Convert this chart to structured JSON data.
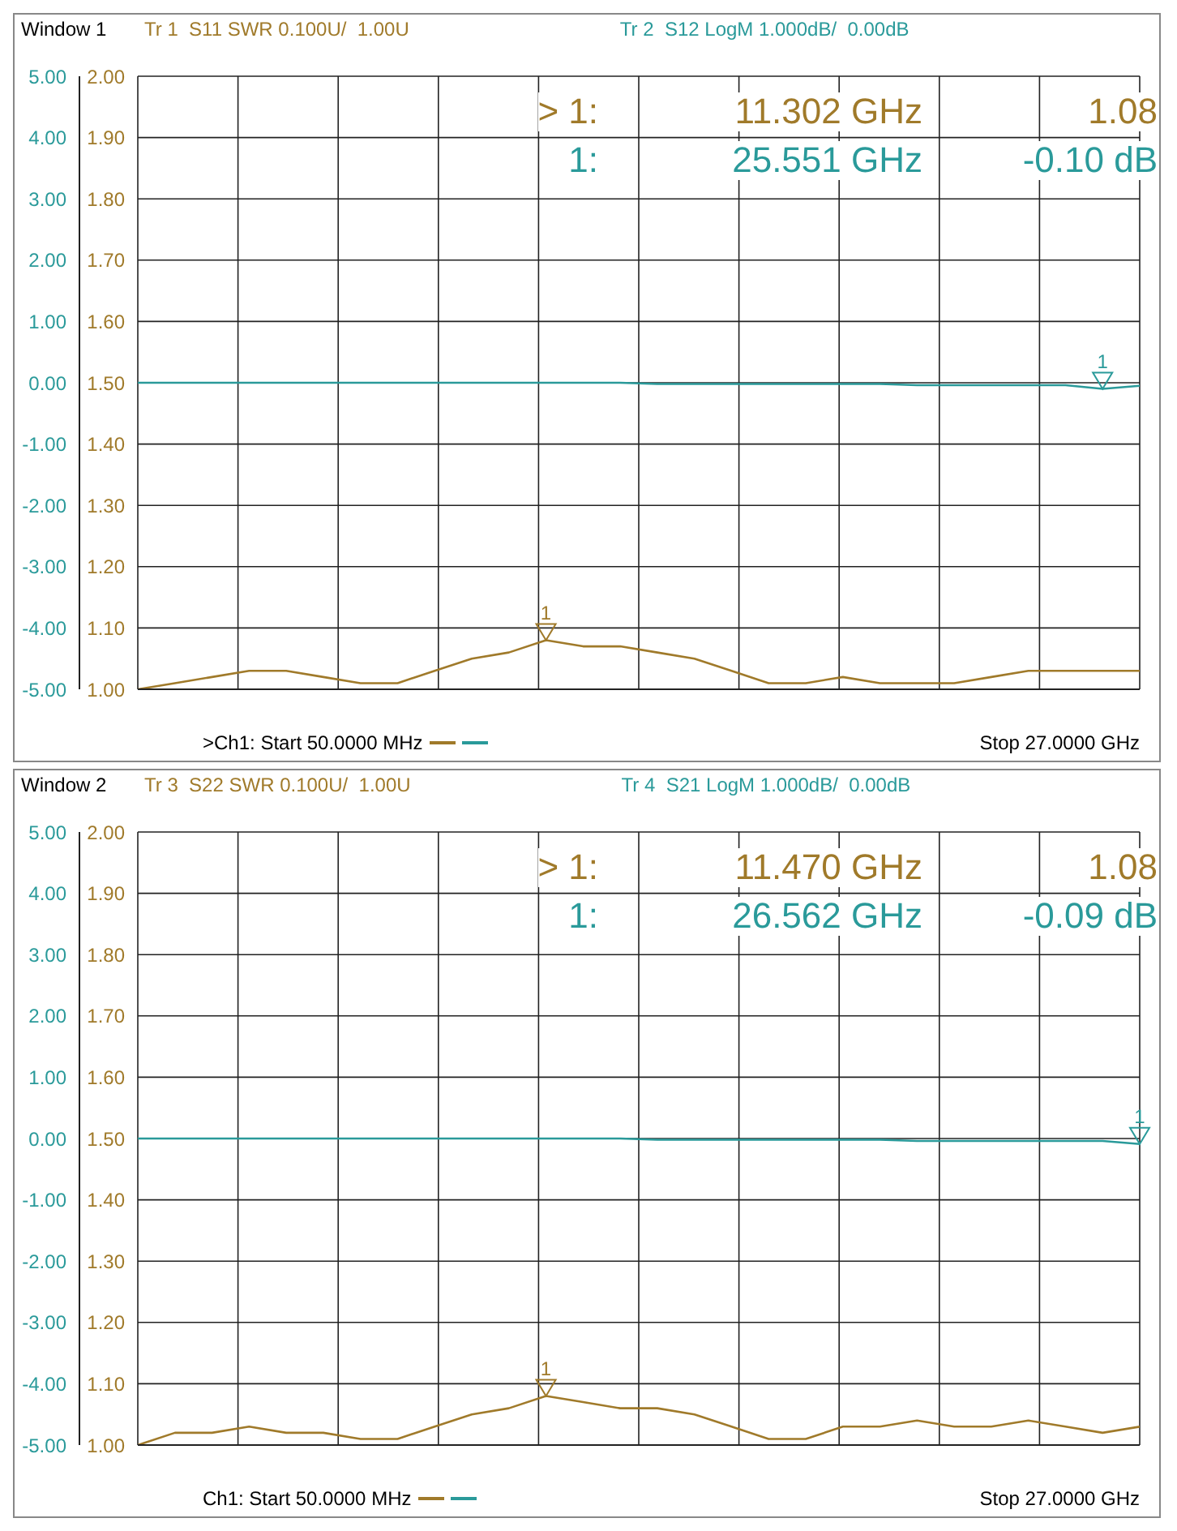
{
  "chart_data": [
    {
      "type": "line",
      "title": "Window 1",
      "grid": true,
      "categories": [
        null,
        null,
        null,
        null,
        null,
        null,
        null,
        null,
        null,
        null,
        null,
        null,
        null,
        null,
        null,
        null,
        null,
        null,
        null,
        null,
        null,
        null,
        null,
        null,
        null,
        null,
        null,
        null
      ],
      "series": [
        {
          "name": "Tr 1  S11 SWR 0.100U/  1.00U",
          "color": "#a07a2a",
          "values": [
            1.0,
            1.01,
            1.02,
            1.03,
            1.03,
            1.02,
            1.01,
            1.01,
            1.03,
            1.05,
            1.06,
            1.08,
            1.07,
            1.07,
            1.06,
            1.05,
            1.03,
            1.01,
            1.01,
            1.02,
            1.01,
            1.01,
            1.01,
            1.02,
            1.03,
            1.03,
            1.03,
            1.03
          ]
        },
        {
          "name": "Tr 2  S12 LogM 1.000dB/  0.00dB",
          "color": "#2a9a9a",
          "axis": "y2",
          "values": [
            0.0,
            0.0,
            0.0,
            0.0,
            0.0,
            0.0,
            0.0,
            0.0,
            0.0,
            0.0,
            0.0,
            0.0,
            0.0,
            0.0,
            -0.02,
            -0.02,
            -0.02,
            -0.02,
            -0.02,
            -0.02,
            -0.02,
            -0.04,
            -0.04,
            -0.04,
            -0.04,
            -0.04,
            -0.1,
            -0.05
          ]
        }
      ],
      "ylim": [
        1,
        2
      ],
      "yticks": [
        {
          "value": 1,
          "label": "1.00"
        },
        {
          "value": 1.1,
          "label": "1.10"
        },
        {
          "value": 1.2,
          "label": "1.20"
        },
        {
          "value": 1.3,
          "label": "1.30"
        },
        {
          "value": 1.4,
          "label": "1.40"
        },
        {
          "value": 1.5,
          "label": "1.50"
        },
        {
          "value": 1.6,
          "label": "1.60"
        },
        {
          "value": 1.7,
          "label": "1.70"
        },
        {
          "value": 1.8,
          "label": "1.80"
        },
        {
          "value": 1.9,
          "label": "1.90"
        },
        {
          "value": 2,
          "label": "2.00"
        }
      ],
      "y2lim": [
        -5,
        5
      ],
      "y2ticks": [
        {
          "value": -5,
          "label": "-5.00"
        },
        {
          "value": -4,
          "label": "-4.00"
        },
        {
          "value": -3,
          "label": "-3.00"
        },
        {
          "value": -2,
          "label": "-2.00"
        },
        {
          "value": -1,
          "label": "-1.00"
        },
        {
          "value": 0,
          "label": "0.00"
        },
        {
          "value": 1,
          "label": "1.00"
        },
        {
          "value": 2,
          "label": "2.00"
        },
        {
          "value": 3,
          "label": "3.00"
        },
        {
          "value": 4,
          "label": "4.00"
        },
        {
          "value": 5,
          "label": "5.00"
        }
      ],
      "annotations": [
        ">Ch1: Start 50.0000 MHz",
        "Stop 27.0000 GHz",
        "> 1:",
        "11.302 GHz",
        "1.08",
        "1:",
        "25.551 GHz",
        "-0.10 dB",
        {
          "text": "1",
          "y": 1.08
        },
        "1"
      ]
    },
    {
      "type": "line",
      "title": "Window 2",
      "grid": true,
      "categories": [
        null,
        null,
        null,
        null,
        null,
        null,
        null,
        null,
        null,
        null,
        null,
        null,
        null,
        null,
        null,
        null,
        null,
        null,
        null,
        null,
        null,
        null,
        null,
        null,
        null,
        null,
        null,
        null
      ],
      "series": [
        {
          "name": "Tr 3  S22 SWR 0.100U/  1.00U",
          "color": "#a07a2a",
          "values": [
            1.0,
            1.02,
            1.02,
            1.03,
            1.02,
            1.02,
            1.01,
            1.01,
            1.03,
            1.05,
            1.06,
            1.08,
            1.07,
            1.06,
            1.06,
            1.05,
            1.03,
            1.01,
            1.01,
            1.03,
            1.03,
            1.04,
            1.03,
            1.03,
            1.04,
            1.03,
            1.02,
            1.03
          ]
        },
        {
          "name": "Tr 4  S21 LogM 1.000dB/  0.00dB",
          "color": "#2a9a9a",
          "axis": "y2",
          "values": [
            0.0,
            0.0,
            0.0,
            0.0,
            0.0,
            0.0,
            0.0,
            0.0,
            0.0,
            0.0,
            0.0,
            0.0,
            0.0,
            0.0,
            -0.02,
            -0.02,
            -0.02,
            -0.02,
            -0.02,
            -0.02,
            -0.02,
            -0.04,
            -0.04,
            -0.04,
            -0.04,
            -0.04,
            -0.04,
            -0.09
          ]
        }
      ],
      "ylim": [
        1,
        2
      ],
      "yticks": [
        {
          "value": 1,
          "label": "1.00"
        },
        {
          "value": 1.1,
          "label": "1.10"
        },
        {
          "value": 1.2,
          "label": "1.20"
        },
        {
          "value": 1.3,
          "label": "1.30"
        },
        {
          "value": 1.4,
          "label": "1.40"
        },
        {
          "value": 1.5,
          "label": "1.50"
        },
        {
          "value": 1.6,
          "label": "1.60"
        },
        {
          "value": 1.7,
          "label": "1.70"
        },
        {
          "value": 1.8,
          "label": "1.80"
        },
        {
          "value": 1.9,
          "label": "1.90"
        },
        {
          "value": 2,
          "label": "2.00"
        }
      ],
      "y2lim": [
        -5,
        5
      ],
      "y2ticks": [
        {
          "value": -5,
          "label": "-5.00"
        },
        {
          "value": -4,
          "label": "-4.00"
        },
        {
          "value": -3,
          "label": "-3.00"
        },
        {
          "value": -2,
          "label": "-2.00"
        },
        {
          "value": -1,
          "label": "-1.00"
        },
        {
          "value": 0,
          "label": "0.00"
        },
        {
          "value": 1,
          "label": "1.00"
        },
        {
          "value": 2,
          "label": "2.00"
        },
        {
          "value": 3,
          "label": "3.00"
        },
        {
          "value": 4,
          "label": "4.00"
        },
        {
          "value": 5,
          "label": "5.00"
        }
      ],
      "annotations": [
        "Ch1: Start 50.0000 MHz",
        "Stop 27.0000 GHz",
        "> 1:",
        "11.470 GHz",
        "1.08",
        "1:",
        "26.562 GHz",
        "-0.09 dB",
        {
          "text": "1",
          "y": 1.08
        },
        "1"
      ]
    }
  ]
}
